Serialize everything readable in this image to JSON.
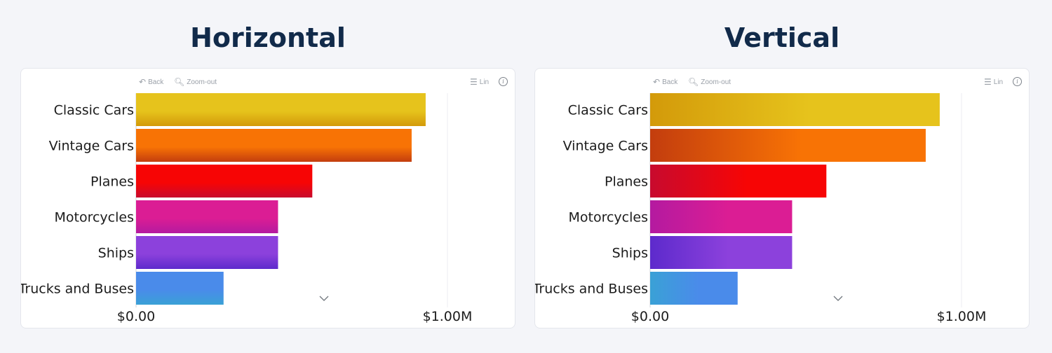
{
  "toolbar": {
    "back_label": "Back",
    "zoom_label": "Zoom-out",
    "scale_label": "Lin",
    "info_glyph": "i"
  },
  "chart_data": [
    {
      "type": "bar",
      "orientation": "horizontal",
      "title": "Horizontal",
      "gradient_direction": "vertical",
      "categories": [
        "Classic Cars",
        "Vintage Cars",
        "Planes",
        "Motorcycles",
        "Ships",
        "Trucks and Buses"
      ],
      "values": [
        930000,
        885000,
        566000,
        456000,
        456000,
        281000
      ],
      "xlim": [
        0,
        1000000
      ],
      "xticks": [
        "$0.00",
        "$1.00M"
      ],
      "colors": [
        [
          "#e6c31c",
          "#d39a0a"
        ],
        [
          "#f87305",
          "#c33d0e"
        ],
        [
          "#f70505",
          "#c80a2e"
        ],
        [
          "#db1d94",
          "#b41aa0"
        ],
        [
          "#8c41dc",
          "#5d2acc"
        ],
        [
          "#4a8bea",
          "#3aa1d6"
        ]
      ]
    },
    {
      "type": "bar",
      "orientation": "horizontal",
      "title": "Vertical",
      "gradient_direction": "horizontal",
      "categories": [
        "Classic Cars",
        "Vintage Cars",
        "Planes",
        "Motorcycles",
        "Ships",
        "Trucks and Buses"
      ],
      "values": [
        930000,
        885000,
        566000,
        456000,
        456000,
        281000
      ],
      "xlim": [
        0,
        1000000
      ],
      "xticks": [
        "$0.00",
        "$1.00M"
      ],
      "colors": [
        [
          "#e6c31c",
          "#d39a0a"
        ],
        [
          "#f87305",
          "#c33d0e"
        ],
        [
          "#f70505",
          "#c80a2e"
        ],
        [
          "#db1d94",
          "#b41aa0"
        ],
        [
          "#8c41dc",
          "#5d2acc"
        ],
        [
          "#4a8bea",
          "#3aa1d6"
        ]
      ]
    }
  ]
}
